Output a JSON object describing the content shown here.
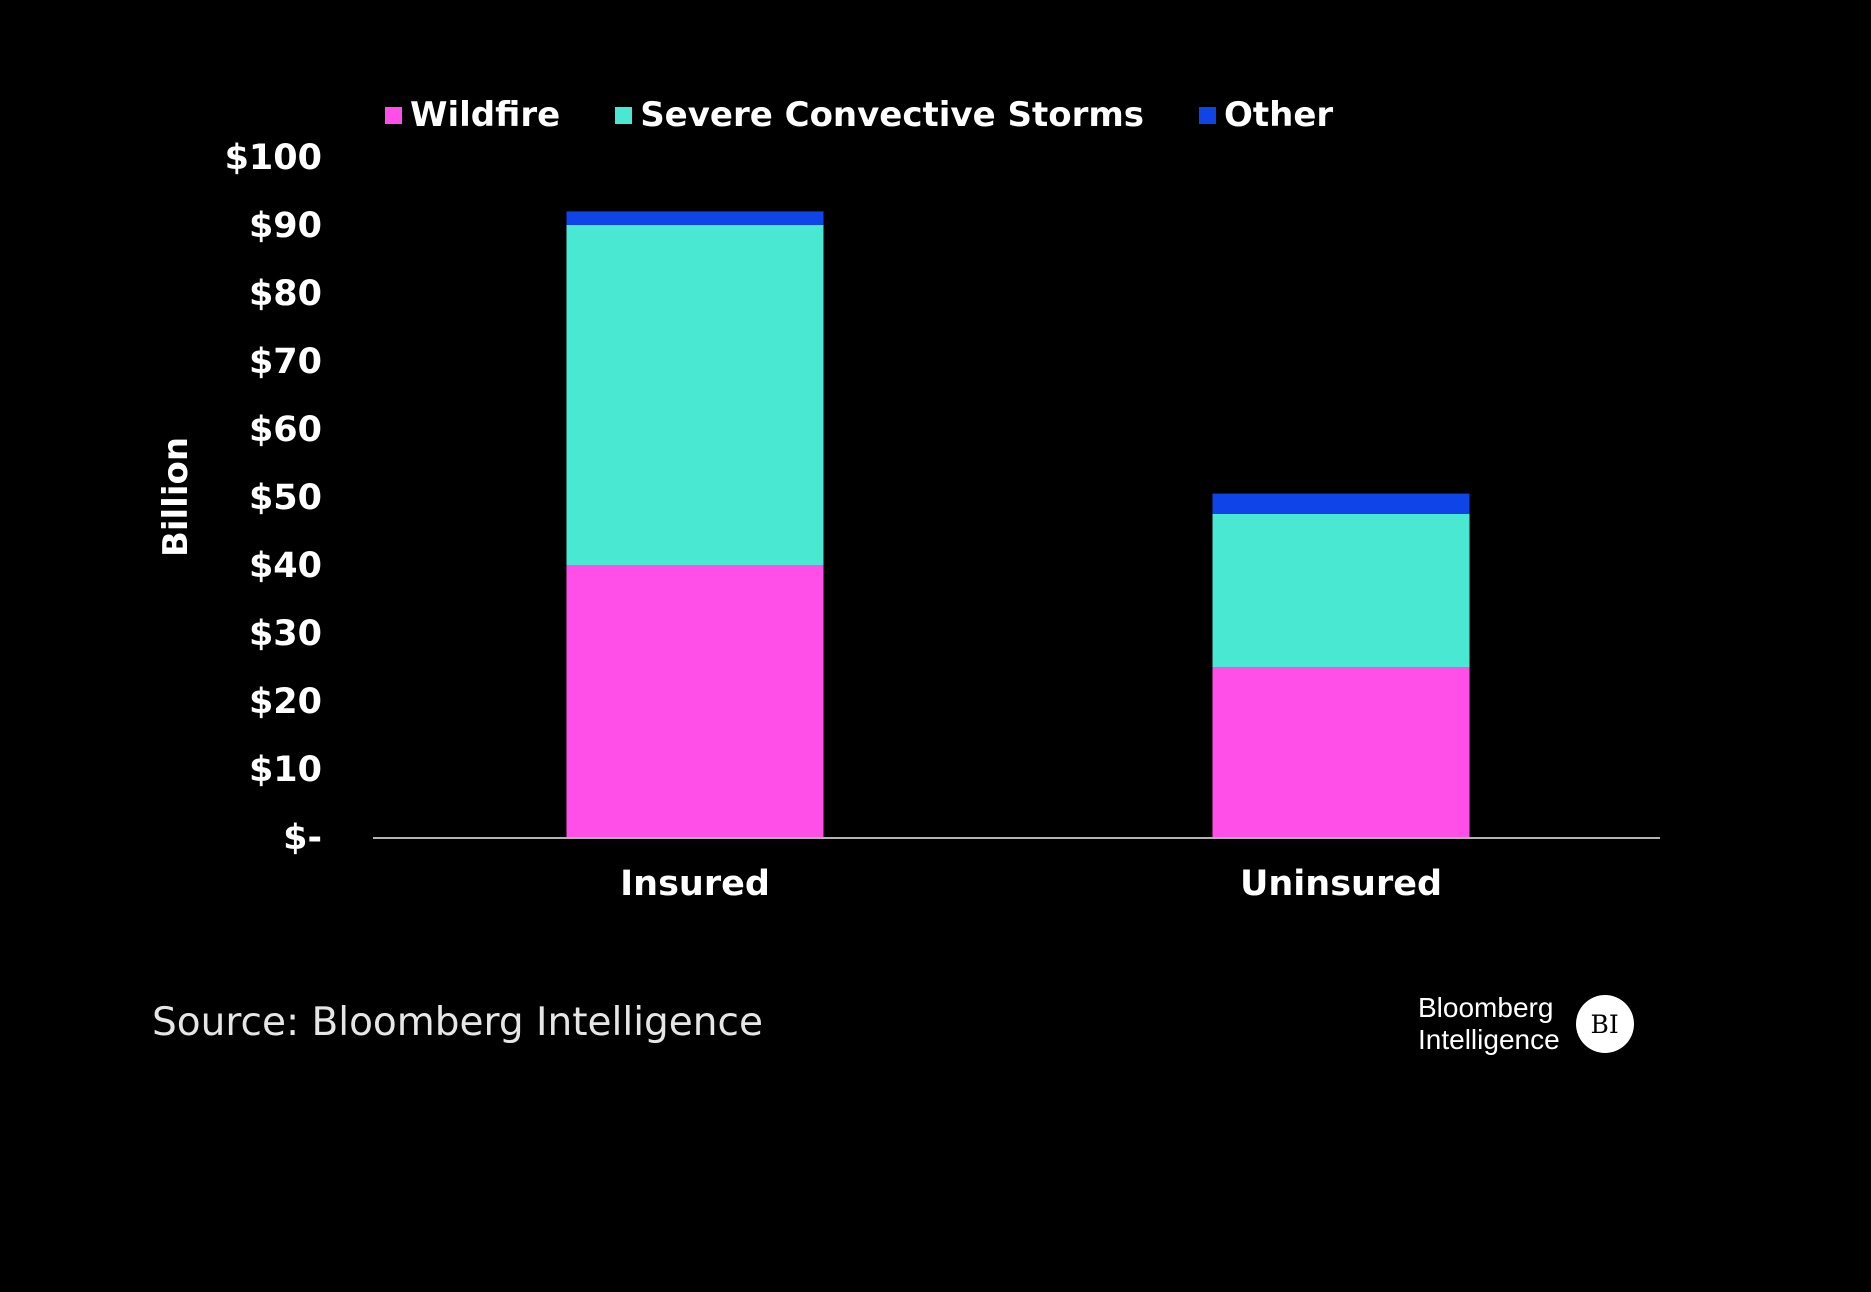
{
  "chart_data": {
    "type": "bar",
    "stacked": true,
    "title": "",
    "xlabel": "",
    "ylabel": "Billion",
    "ylim": [
      0,
      100
    ],
    "yticks": [
      0,
      10,
      20,
      30,
      40,
      50,
      60,
      70,
      80,
      90,
      100
    ],
    "ytick_labels": [
      "$-",
      "$10",
      "$20",
      "$30",
      "$40",
      "$50",
      "$60",
      "$70",
      "$80",
      "$90",
      "$100"
    ],
    "categories": [
      "Insured",
      "Uninsured"
    ],
    "series": [
      {
        "name": "Wildfire",
        "color": "#ff4fe8",
        "values": [
          40,
          25
        ]
      },
      {
        "name": "Severe Convective Storms",
        "color": "#48e8d2",
        "values": [
          50,
          22.5
        ]
      },
      {
        "name": "Other",
        "color": "#0f45e8",
        "values": [
          2,
          3
        ]
      }
    ],
    "legend_position": "top",
    "grid": false
  },
  "footer": {
    "source": "Source: Bloomberg Intelligence",
    "logo_line1": "Bloomberg",
    "logo_line2": "Intelligence",
    "logo_badge": "BI"
  }
}
